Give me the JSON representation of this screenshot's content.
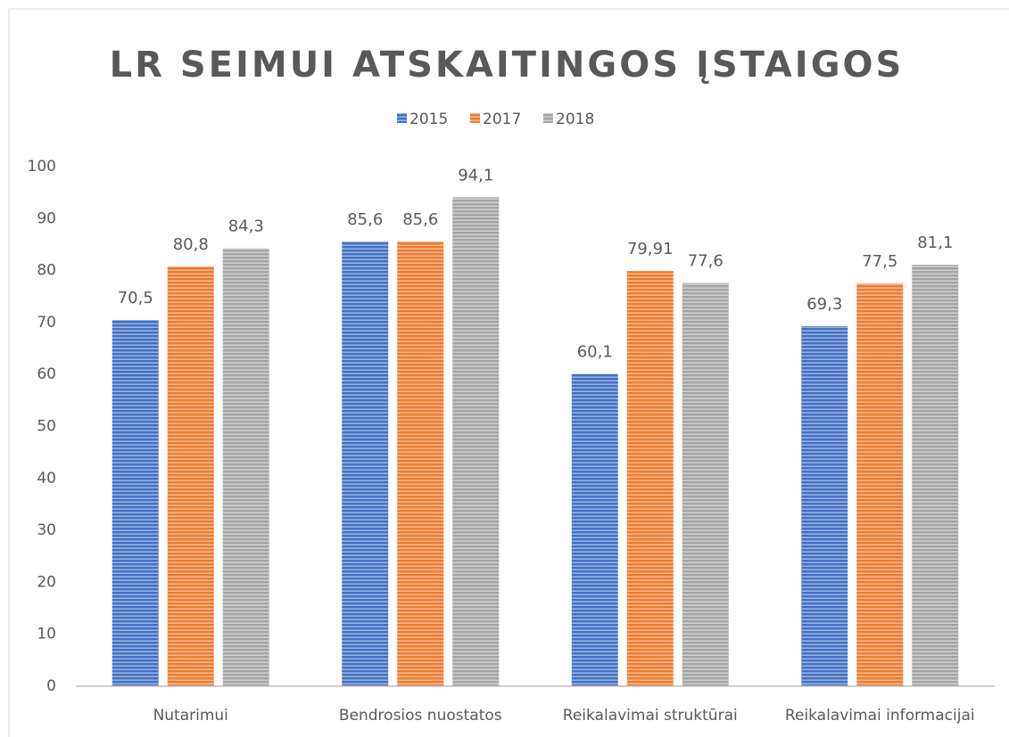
{
  "chart_data": {
    "type": "bar",
    "title": "LR SEIMUI ATSKAITINGOS ĮSTAIGOS",
    "categories": [
      "Nutarimui",
      "Bendrosios nuostatos",
      "Reikalavimai struktūrai",
      "Reikalavimai informacijai"
    ],
    "series": [
      {
        "name": "2015",
        "color": "#4472c4",
        "values": [
          70.5,
          85.6,
          60.1,
          69.3
        ],
        "value_labels": [
          "70,5",
          "85,6",
          "60,1",
          "69,3"
        ]
      },
      {
        "name": "2017",
        "color": "#ed7d31",
        "values": [
          80.8,
          85.6,
          79.91,
          77.5
        ],
        "value_labels": [
          "80,8",
          "85,6",
          "79,91",
          "77,5"
        ]
      },
      {
        "name": "2018",
        "color": "#a5a5a5",
        "values": [
          84.3,
          94.1,
          77.6,
          81.1
        ],
        "value_labels": [
          "84,3",
          "94,1",
          "77,6",
          "81,1"
        ]
      }
    ],
    "ylim": [
      0,
      100
    ],
    "yticks": [
      0,
      10,
      20,
      30,
      40,
      50,
      60,
      70,
      80,
      90,
      100
    ],
    "grid": false,
    "legend": "top"
  }
}
